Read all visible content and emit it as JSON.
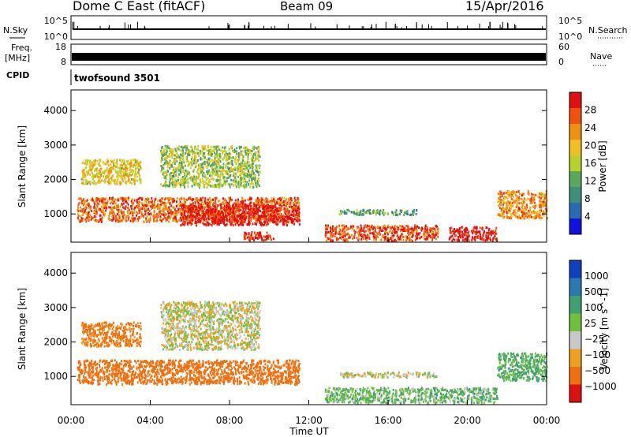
{
  "header": {
    "station": "Dome C East (fitACF)",
    "beam": "Beam 09",
    "date": "15/Apr/2016"
  },
  "top_panels": {
    "nsky_label": "N.Sky",
    "nsky_ticks": [
      "10^5",
      "10^0"
    ],
    "nsearch_label": "N.Search",
    "nsearch_ticks": [
      "10^5",
      "10^0"
    ],
    "freq_label": "Freq.",
    "freq_unit": "[MHz]",
    "freq_ticks": [
      "18",
      "8"
    ],
    "nave_label": "Nave",
    "nave_ticks": [
      "60",
      "0"
    ],
    "cpid_label": "CPID",
    "cpid_value": "twofsound 3501"
  },
  "chart_data": [
    {
      "type": "heatmap",
      "title": "",
      "xlabel": "Time UT",
      "ylabel": "Slant Range [km]",
      "x_ticks": [
        "00:00",
        "04:00",
        "08:00",
        "12:00",
        "16:00",
        "20:00",
        "00:00"
      ],
      "xlim_hours": [
        0,
        24
      ],
      "ylim_km": [
        180,
        4600
      ],
      "y_ticks": [
        1000,
        2000,
        3000,
        4000
      ],
      "colorbar": {
        "label": "Power [dB]",
        "ticks": [
          "4",
          "8",
          "12",
          "16",
          "20",
          "24",
          "28"
        ],
        "range": [
          0,
          30
        ]
      },
      "regions": [
        {
          "t0": 0.3,
          "t1": 11.5,
          "r0": 800,
          "r1": 1500,
          "value": 24
        },
        {
          "t0": 5.5,
          "t1": 11.5,
          "r0": 700,
          "r1": 1300,
          "value": 29
        },
        {
          "t0": 0.5,
          "t1": 3.5,
          "r0": 1900,
          "r1": 2600,
          "value": 18
        },
        {
          "t0": 4.5,
          "t1": 9.5,
          "r0": 1800,
          "r1": 3000,
          "value": 14
        },
        {
          "t0": 8.7,
          "t1": 10.2,
          "r0": 250,
          "r1": 500,
          "value": 28
        },
        {
          "t0": 12.8,
          "t1": 18.5,
          "r0": 250,
          "r1": 700,
          "value": 26
        },
        {
          "t0": 19.0,
          "t1": 21.5,
          "r0": 250,
          "r1": 650,
          "value": 29
        },
        {
          "t0": 21.5,
          "t1": 24.0,
          "r0": 900,
          "r1": 1700,
          "value": 22
        },
        {
          "t0": 13.5,
          "t1": 17.5,
          "r0": 1000,
          "r1": 1150,
          "value": 10
        }
      ]
    },
    {
      "type": "heatmap",
      "title": "",
      "xlabel": "Time UT",
      "ylabel": "Slant Range [km]",
      "x_ticks": [
        "00:00",
        "04:00",
        "08:00",
        "12:00",
        "16:00",
        "20:00",
        "00:00"
      ],
      "xlim_hours": [
        0,
        24
      ],
      "ylim_km": [
        180,
        4600
      ],
      "y_ticks": [
        1000,
        2000,
        3000,
        4000
      ],
      "colorbar": {
        "label": "Velocity [m s^-1]",
        "ticks": [
          "1000",
          "500",
          "100",
          "25",
          "−25",
          "−100",
          "−500",
          "−1000"
        ]
      },
      "regions": [
        {
          "t0": 0.3,
          "t1": 11.5,
          "r0": 800,
          "r1": 1500,
          "value": -200
        },
        {
          "t0": 0.5,
          "t1": 3.5,
          "r0": 1900,
          "r1": 2600,
          "value": -150
        },
        {
          "t0": 4.5,
          "t1": 9.5,
          "r0": 1800,
          "r1": 3200,
          "value": 0
        },
        {
          "t0": 12.8,
          "t1": 21.5,
          "r0": 250,
          "r1": 700,
          "value": 80
        },
        {
          "t0": 13.5,
          "t1": 18.5,
          "r0": 1000,
          "r1": 1150,
          "value": 0
        },
        {
          "t0": 21.5,
          "t1": 24.0,
          "r0": 900,
          "r1": 1700,
          "value": 120
        }
      ]
    }
  ],
  "colors": {
    "power_scale": [
      "#1010e0",
      "#2a6ab0",
      "#3f8f7a",
      "#5aa85a",
      "#b8d22c",
      "#f0c020",
      "#f09010",
      "#f05010",
      "#e01010"
    ],
    "velocity_scale": [
      "#1040c0",
      "#2a7ab0",
      "#3fa070",
      "#70c040",
      "#c8c8c8",
      "#f0a020",
      "#f07010",
      "#e01010"
    ]
  }
}
